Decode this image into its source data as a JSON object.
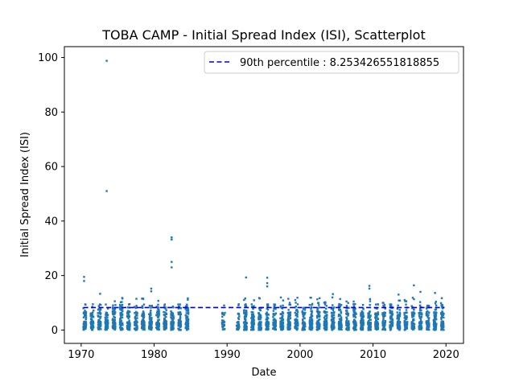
{
  "chart_data": {
    "type": "scatter",
    "title": "TOBA CAMP - Initial Spread Index (ISI), Scatterplot",
    "xlabel": "Date",
    "ylabel": "Initial Spread Index (ISI)",
    "xlim": [
      1967.7,
      2022.4
    ],
    "ylim": [
      -4.9,
      104
    ],
    "x_ticks": [
      1970,
      1980,
      1990,
      2000,
      2010,
      2020
    ],
    "y_ticks": [
      0,
      20,
      40,
      60,
      80,
      100
    ],
    "grid": false,
    "legend": {
      "placement": "top-right",
      "entries": [
        "90th percentile : 8.253426551818855"
      ]
    },
    "colors": {
      "points": "#1f77b4",
      "percentile_line": "#0000cc"
    },
    "percentile_90": 8.253426551818855,
    "season_gaps_years": [
      1985,
      1986,
      1987,
      1988,
      1990
    ],
    "notable_points": [
      {
        "x": 1973.5,
        "y": 98.8
      },
      {
        "x": 1973.5,
        "y": 51
      },
      {
        "x": 1982.4,
        "y": 34
      },
      {
        "x": 1982.4,
        "y": 33.2
      },
      {
        "x": 1982.4,
        "y": 25
      },
      {
        "x": 1982.4,
        "y": 23
      },
      {
        "x": 1970.4,
        "y": 19.5
      },
      {
        "x": 1970.4,
        "y": 18
      },
      {
        "x": 1979.6,
        "y": 15.2
      },
      {
        "x": 1979.6,
        "y": 14.2
      },
      {
        "x": 1992.6,
        "y": 19.3
      },
      {
        "x": 1995.5,
        "y": 19.2
      },
      {
        "x": 1995.5,
        "y": 17.2
      },
      {
        "x": 1995.5,
        "y": 16
      },
      {
        "x": 2009.5,
        "y": 16.2
      },
      {
        "x": 2009.5,
        "y": 15.2
      },
      {
        "x": 2015.6,
        "y": 16.4
      },
      {
        "x": 1972.6,
        "y": 13.3
      },
      {
        "x": 2004.5,
        "y": 13.2
      },
      {
        "x": 2013.5,
        "y": 13
      },
      {
        "x": 2016.5,
        "y": 14
      },
      {
        "x": 2018.5,
        "y": 13.6
      }
    ]
  }
}
